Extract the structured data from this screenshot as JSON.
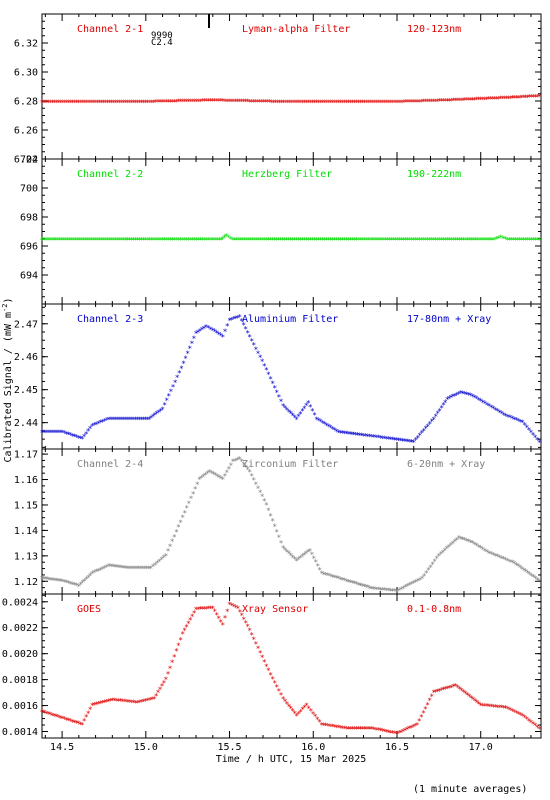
{
  "chart_data": [
    {
      "type": "scatter",
      "channel": "Channel 2-1",
      "filter": "Lyman-alpha Filter",
      "band": "120-123nm",
      "color": "#dd0000",
      "annotation": [
        "9990",
        "C2.4"
      ],
      "ylim": [
        6.24,
        6.34
      ],
      "yticks": [
        6.24,
        6.26,
        6.28,
        6.3,
        6.32
      ],
      "ytick_labels": [
        "6.24",
        "6.26",
        "6.28",
        "6.30",
        "6.32"
      ],
      "series": [
        {
          "points": [
            [
              14.38,
              6.279
            ],
            [
              14.6,
              6.279
            ],
            [
              15.0,
              6.279
            ],
            [
              15.4,
              6.28
            ],
            [
              15.8,
              6.279
            ],
            [
              16.2,
              6.279
            ],
            [
              16.5,
              6.279
            ],
            [
              16.8,
              6.28
            ],
            [
              17.0,
              6.281
            ],
            [
              17.2,
              6.282
            ],
            [
              17.35,
              6.283
            ]
          ]
        }
      ]
    },
    {
      "type": "scatter",
      "channel": "Channel 2-2",
      "filter": "Herzberg Filter",
      "band": "190-222nm",
      "color": "#00dd00",
      "ylim": [
        692,
        702
      ],
      "yticks": [
        694,
        696,
        698,
        700,
        702
      ],
      "ytick_labels": [
        "694",
        "696",
        "698",
        "700",
        "702"
      ],
      "series": [
        {
          "points": [
            [
              14.38,
              696.4
            ],
            [
              15.0,
              696.4
            ],
            [
              15.45,
              696.4
            ],
            [
              15.48,
              696.7
            ],
            [
              15.52,
              696.4
            ],
            [
              16.2,
              696.4
            ],
            [
              17.08,
              696.4
            ],
            [
              17.12,
              696.6
            ],
            [
              17.16,
              696.4
            ],
            [
              17.35,
              696.4
            ]
          ]
        }
      ]
    },
    {
      "type": "scatter",
      "channel": "Channel 2-3",
      "filter": "Aluminium Filter",
      "band": "17-80nm + Xray",
      "color": "#0000cc",
      "ylim": [
        2.432,
        2.476
      ],
      "yticks": [
        2.44,
        2.45,
        2.46,
        2.47
      ],
      "ytick_labels": [
        "2.44",
        "2.45",
        "2.46",
        "2.47"
      ],
      "series": [
        {
          "points": [
            [
              14.38,
              2.437
            ],
            [
              14.5,
              2.437
            ],
            [
              14.62,
              2.435
            ],
            [
              14.68,
              2.439
            ],
            [
              14.78,
              2.441
            ],
            [
              14.9,
              2.441
            ],
            [
              15.02,
              2.441
            ],
            [
              15.1,
              2.444
            ],
            [
              15.2,
              2.455
            ],
            [
              15.3,
              2.467
            ],
            [
              15.36,
              2.469
            ],
            [
              15.4,
              2.468
            ],
            [
              15.46,
              2.466
            ],
            [
              15.5,
              2.471
            ],
            [
              15.56,
              2.472
            ],
            [
              15.62,
              2.466
            ],
            [
              15.72,
              2.456
            ],
            [
              15.82,
              2.445
            ],
            [
              15.9,
              2.441
            ],
            [
              15.97,
              2.446
            ],
            [
              16.02,
              2.441
            ],
            [
              16.15,
              2.437
            ],
            [
              16.3,
              2.436
            ],
            [
              16.45,
              2.435
            ],
            [
              16.6,
              2.434
            ],
            [
              16.72,
              2.441
            ],
            [
              16.8,
              2.447
            ],
            [
              16.88,
              2.449
            ],
            [
              16.95,
              2.448
            ],
            [
              17.05,
              2.445
            ],
            [
              17.15,
              2.442
            ],
            [
              17.25,
              2.44
            ],
            [
              17.35,
              2.434
            ]
          ]
        }
      ]
    },
    {
      "type": "scatter",
      "channel": "Channel 2-4",
      "filter": "Zirconium Filter",
      "band": "6-20nm + Xray",
      "color": "#808080",
      "ylim": [
        1.115,
        1.172
      ],
      "yticks": [
        1.12,
        1.13,
        1.14,
        1.15,
        1.16,
        1.17
      ],
      "ytick_labels": [
        "1.12",
        "1.13",
        "1.14",
        "1.15",
        "1.16",
        "1.17"
      ],
      "series": [
        {
          "points": [
            [
              14.38,
              1.121
            ],
            [
              14.5,
              1.12
            ],
            [
              14.6,
              1.118
            ],
            [
              14.68,
              1.123
            ],
            [
              14.78,
              1.126
            ],
            [
              14.9,
              1.125
            ],
            [
              15.03,
              1.125
            ],
            [
              15.12,
              1.13
            ],
            [
              15.22,
              1.145
            ],
            [
              15.32,
              1.16
            ],
            [
              15.38,
              1.163
            ],
            [
              15.46,
              1.16
            ],
            [
              15.52,
              1.167
            ],
            [
              15.56,
              1.168
            ],
            [
              15.62,
              1.163
            ],
            [
              15.72,
              1.15
            ],
            [
              15.82,
              1.133
            ],
            [
              15.9,
              1.128
            ],
            [
              15.98,
              1.132
            ],
            [
              16.05,
              1.123
            ],
            [
              16.2,
              1.12
            ],
            [
              16.35,
              1.117
            ],
            [
              16.5,
              1.116
            ],
            [
              16.65,
              1.121
            ],
            [
              16.75,
              1.13
            ],
            [
              16.87,
              1.137
            ],
            [
              16.95,
              1.135
            ],
            [
              17.05,
              1.131
            ],
            [
              17.2,
              1.127
            ],
            [
              17.35,
              1.12
            ]
          ]
        }
      ]
    },
    {
      "type": "scatter",
      "channel": "GOES",
      "filter": "Xray Sensor",
      "band": "0.1-0.8nm",
      "color": "#dd0000",
      "ylim": [
        0.00135,
        0.00246
      ],
      "yticks": [
        0.0014,
        0.0016,
        0.0018,
        0.002,
        0.0022,
        0.0024
      ],
      "ytick_labels": [
        "0.0014",
        "0.0016",
        "0.0018",
        "0.0020",
        "0.0022",
        "0.0024"
      ],
      "series": [
        {
          "points": [
            [
              14.38,
              0.00155
            ],
            [
              14.5,
              0.0015
            ],
            [
              14.62,
              0.00145
            ],
            [
              14.68,
              0.0016
            ],
            [
              14.8,
              0.00164
            ],
            [
              14.95,
              0.00162
            ],
            [
              15.05,
              0.00165
            ],
            [
              15.12,
              0.0018
            ],
            [
              15.22,
              0.00215
            ],
            [
              15.3,
              0.00234
            ],
            [
              15.4,
              0.00235
            ],
            [
              15.46,
              0.00222
            ],
            [
              15.5,
              0.00238
            ],
            [
              15.55,
              0.00235
            ],
            [
              15.62,
              0.00218
            ],
            [
              15.72,
              0.0019
            ],
            [
              15.82,
              0.00165
            ],
            [
              15.9,
              0.00152
            ],
            [
              15.96,
              0.0016
            ],
            [
              16.05,
              0.00145
            ],
            [
              16.2,
              0.00142
            ],
            [
              16.35,
              0.00142
            ],
            [
              16.5,
              0.00138
            ],
            [
              16.62,
              0.00145
            ],
            [
              16.72,
              0.0017
            ],
            [
              16.85,
              0.00175
            ],
            [
              16.92,
              0.00168
            ],
            [
              17.0,
              0.0016
            ],
            [
              17.15,
              0.00158
            ],
            [
              17.25,
              0.00152
            ],
            [
              17.35,
              0.00142
            ]
          ]
        }
      ]
    }
  ],
  "xaxis": {
    "xlim": [
      14.38,
      17.36
    ],
    "ticks": [
      14.5,
      15.0,
      15.5,
      16.0,
      16.5,
      17.0
    ],
    "tick_labels": [
      "14.5",
      "15.0",
      "15.5",
      "16.0",
      "16.5",
      "17.0"
    ],
    "label": "Time / h UTC, 15 Mar 2025"
  },
  "ylabel": "Calibrated Signal / (mW m",
  "ylabel_sup": "-2",
  "ylabel_end": ")",
  "footnote": "(1 minute averages)"
}
